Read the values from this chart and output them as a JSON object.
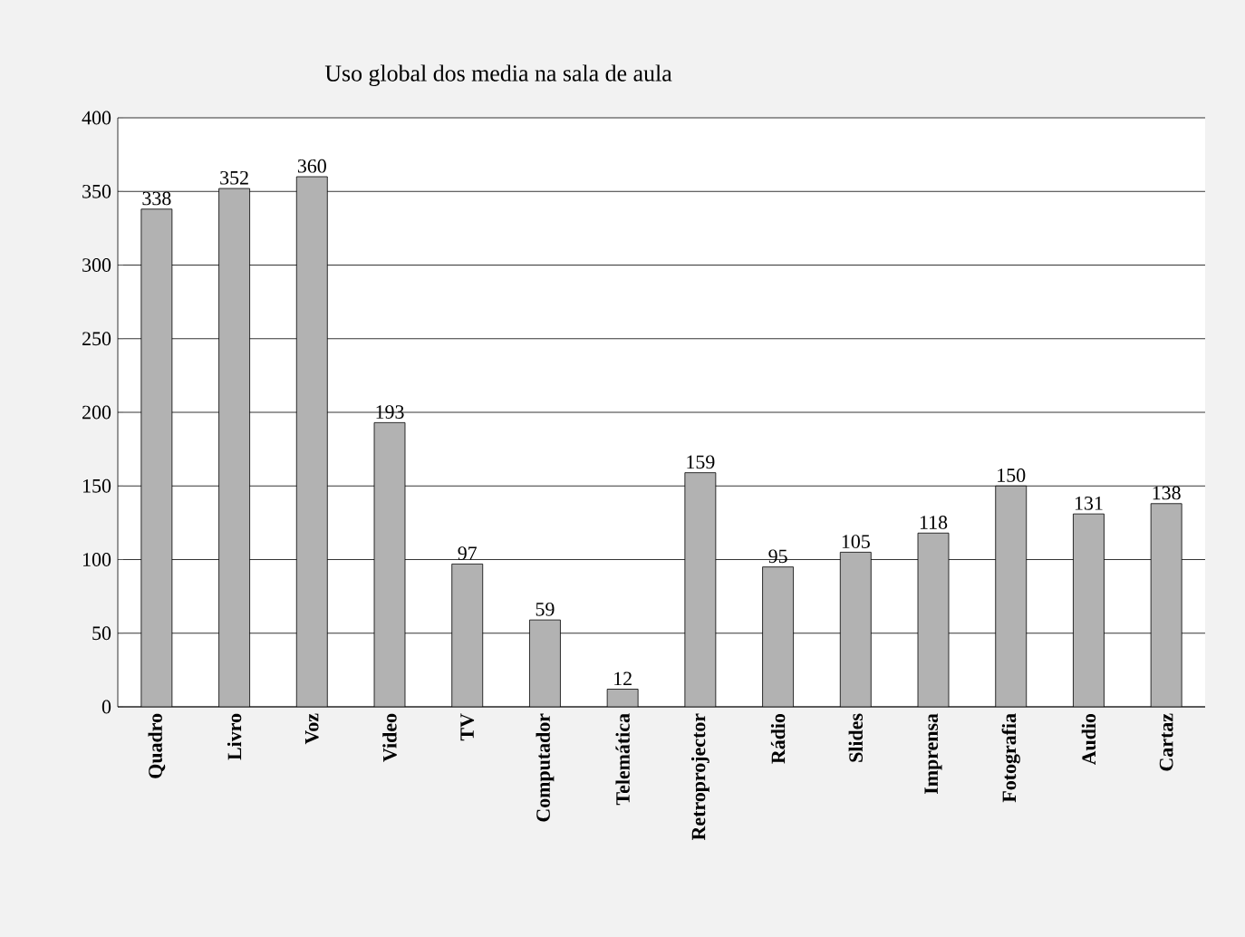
{
  "chart_data": {
    "type": "bar",
    "title": "Uso global dos media na sala de aula",
    "categories": [
      "Quadro",
      "Livro",
      "Voz",
      "Video",
      "TV",
      "Computador",
      "Telemática",
      "Retroprojector",
      "Rádio",
      "Slides",
      "Imprensa",
      "Fotografia",
      "Audio",
      "Cartaz"
    ],
    "values": [
      338,
      352,
      360,
      193,
      97,
      59,
      12,
      159,
      95,
      105,
      118,
      150,
      131,
      138
    ],
    "color": "#b2b2b2",
    "ylim": [
      0,
      400
    ],
    "yticks": [
      0,
      50,
      100,
      150,
      200,
      250,
      300,
      350,
      400
    ],
    "grid": "y",
    "data_labels": true
  }
}
